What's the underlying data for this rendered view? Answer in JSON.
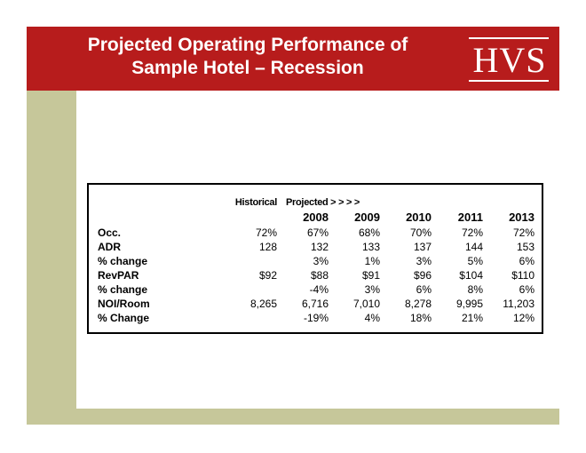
{
  "slide": {
    "title_line1": "Projected Operating Performance of",
    "title_line2": "Sample Hotel – Recession",
    "logo_text": "HVS"
  },
  "colors": {
    "title_bar": "#b71c1c",
    "accent_band": "#c6c79a"
  },
  "table": {
    "header": {
      "historical": "Historical",
      "projected": "Projected  > > > >"
    },
    "years": [
      "2008",
      "2009",
      "2010",
      "2011",
      "2013"
    ],
    "rows": [
      {
        "label": "Occ.",
        "historical": "72%",
        "values": [
          "67%",
          "68%",
          "70%",
          "72%",
          "72%"
        ]
      },
      {
        "label": "ADR",
        "historical": "128",
        "values": [
          "132",
          "133",
          "137",
          "144",
          "153"
        ]
      },
      {
        "label": "% change",
        "historical": "",
        "values": [
          "3%",
          "1%",
          "3%",
          "5%",
          "6%"
        ]
      },
      {
        "label": "RevPAR",
        "historical": "$92",
        "values": [
          "$88",
          "$91",
          "$96",
          "$104",
          "$110"
        ]
      },
      {
        "label": "% change",
        "historical": "",
        "values": [
          "-4%",
          "3%",
          "6%",
          "8%",
          "6%"
        ]
      },
      {
        "label": "NOI/Room",
        "historical": "8,265",
        "values": [
          "6,716",
          "7,010",
          "8,278",
          "9,995",
          "11,203"
        ]
      },
      {
        "label": "% Change",
        "historical": "",
        "values": [
          "-19%",
          "4%",
          "18%",
          "21%",
          "12%"
        ]
      }
    ]
  }
}
